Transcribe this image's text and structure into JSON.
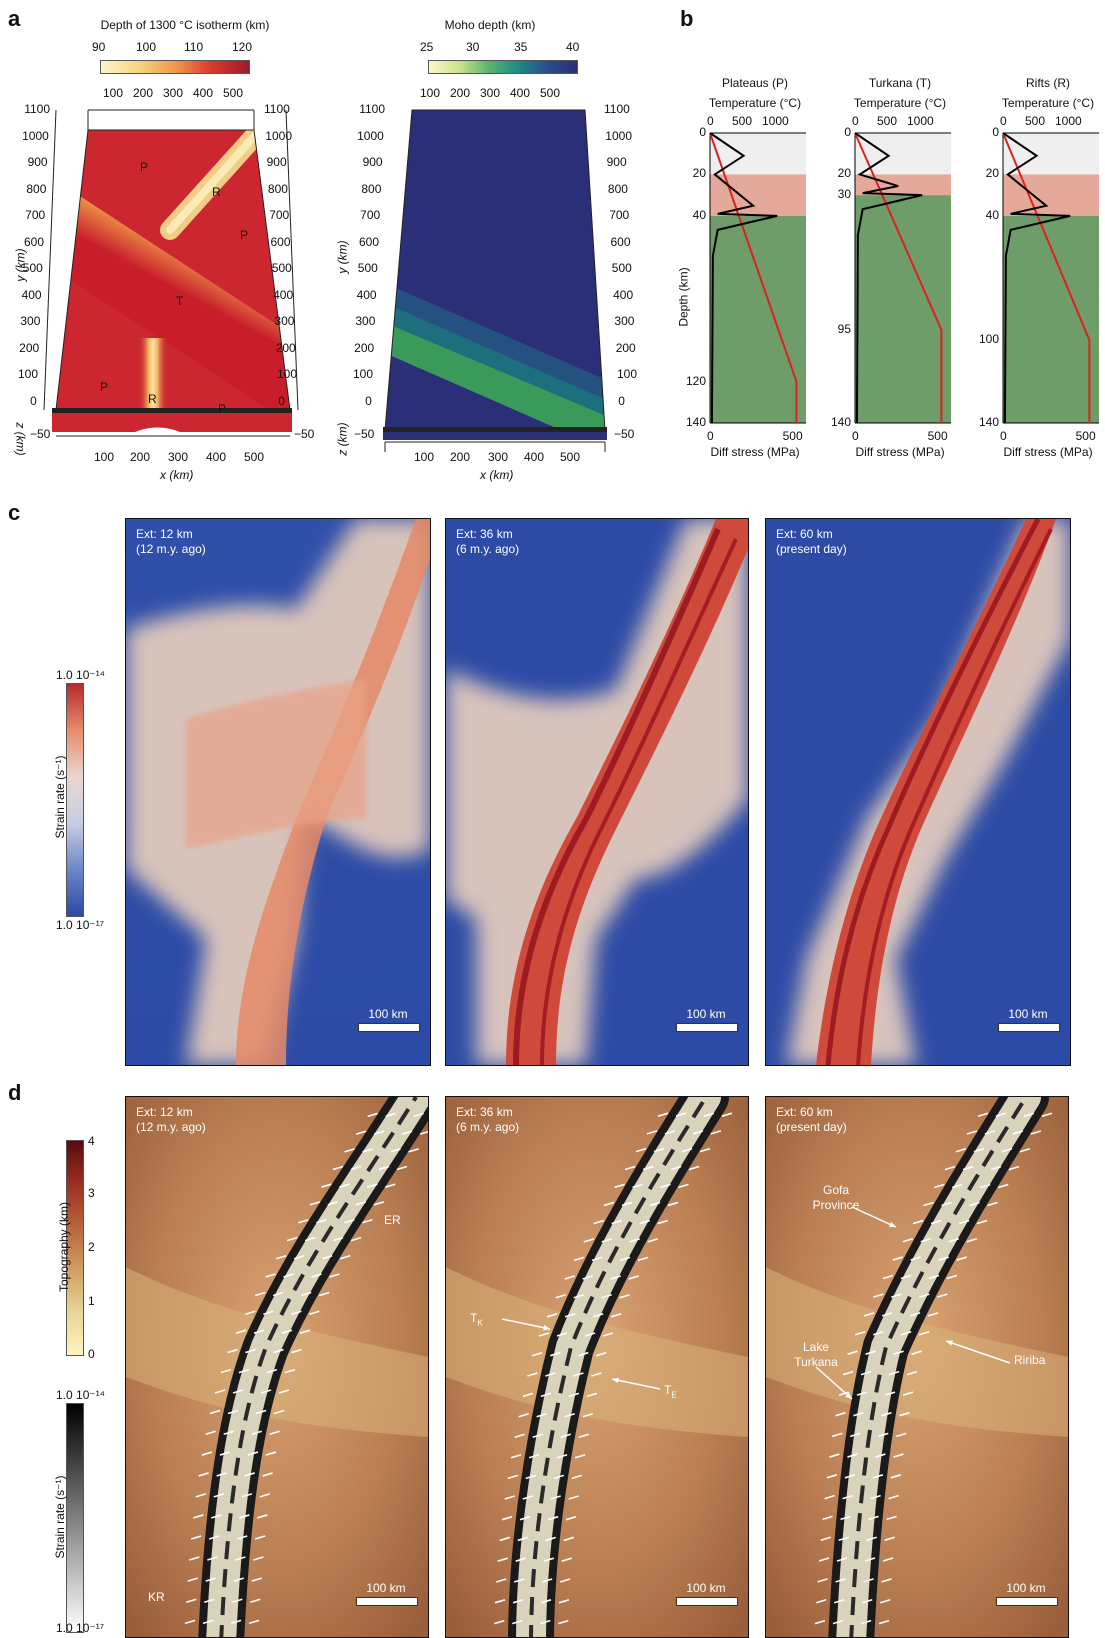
{
  "panel_labels": {
    "a": "a",
    "b": "b",
    "c": "c",
    "d": "d"
  },
  "panel_a": {
    "left": {
      "colorbar_title": "Depth of 1300 °C isotherm (km)",
      "colorbar_ticks": [
        "90",
        "100",
        "110",
        "120"
      ],
      "top_ticks": [
        "100",
        "200",
        "300",
        "400",
        "500"
      ],
      "y_ticks": [
        "1100",
        "1000",
        "900",
        "800",
        "700",
        "600",
        "500",
        "400",
        "300",
        "200",
        "100",
        "0"
      ],
      "z_tick": "−50",
      "x_ticks": [
        "100",
        "200",
        "300",
        "400",
        "500"
      ],
      "xlabel": "x (km)",
      "ylabel": "y (km)",
      "zlabel": "z (km)",
      "region_labels": [
        "P",
        "R",
        "P",
        "T",
        "P",
        "R",
        "P"
      ]
    },
    "right": {
      "colorbar_title": "Moho depth (km)",
      "colorbar_ticks": [
        "25",
        "30",
        "35",
        "40"
      ],
      "top_ticks": [
        "100",
        "200",
        "300",
        "400",
        "500"
      ],
      "y_ticks": [
        "1100",
        "1000",
        "900",
        "800",
        "700",
        "600",
        "500",
        "400",
        "300",
        "200",
        "100",
        "0"
      ],
      "z_tick": "−50",
      "x_ticks": [
        "100",
        "200",
        "300",
        "400",
        "500"
      ],
      "xlabel": "x (km)",
      "ylabel": "y (km)",
      "zlabel": "z (km)"
    },
    "colors": {
      "hot": "#c81e2c",
      "cool": "#f3dc95",
      "moho_deep": "#2b2f78",
      "moho_mid": "#1d6f7e",
      "moho_shallow": "#3a9a5a"
    }
  },
  "panel_b": {
    "ylabel": "Depth (km)",
    "xlabel": "Diff stress (MPa)",
    "top_axis_label": "Temperature (°C)",
    "top_ticks": [
      "0",
      "500",
      "1000"
    ],
    "bottom_ticks": [
      "0",
      "500"
    ],
    "profiles": [
      {
        "title": "Plateaus (P)",
        "depth_ticks": [
          "0",
          "20",
          "40",
          "120",
          "140"
        ],
        "crust_bands": [
          20,
          40
        ],
        "lith_base": 120
      },
      {
        "title": "Turkana (T)",
        "depth_ticks": [
          "0",
          "20",
          "30",
          "95",
          "140"
        ],
        "crust_bands": [
          20,
          30
        ],
        "lith_base": 95
      },
      {
        "title": "Rifts (R)",
        "depth_ticks": [
          "0",
          "20",
          "40",
          "100",
          "140"
        ],
        "crust_bands": [
          20,
          40
        ],
        "lith_base": 100
      }
    ],
    "colors": {
      "upper": "#efefef",
      "lower": "#e4a99a",
      "mantle": "#6e9d69",
      "temp": "#e0201f",
      "stress": "#000000"
    }
  },
  "panel_c": {
    "colorbar_label": "Strain rate (s⁻¹)",
    "colorbar_top": "1.0 10⁻¹⁴",
    "colorbar_bottom": "1.0 10⁻¹⁷",
    "scale": "100 km",
    "frames": [
      {
        "line1": "Ext: 12 km",
        "line2": "(12 m.y. ago)"
      },
      {
        "line1": "Ext: 36 km",
        "line2": "(6 m.y. ago)"
      },
      {
        "line1": "Ext: 60 km",
        "line2": "(present day)"
      }
    ]
  },
  "panel_d": {
    "topo_label": "Topography (km)",
    "topo_ticks": [
      "4",
      "3",
      "2",
      "1",
      "0"
    ],
    "strain_label": "Strain rate (s⁻¹)",
    "strain_top": "1.0 10⁻¹⁴",
    "strain_bottom": "1.0 10⁻¹⁷",
    "scale": "100 km",
    "frames": [
      {
        "line1": "Ext: 12 km",
        "line2": "(12 m.y. ago)"
      },
      {
        "line1": "Ext: 36 km",
        "line2": "(6 m.y. ago)"
      },
      {
        "line1": "Ext: 60 km",
        "line2": "(present day)"
      }
    ],
    "annotations": {
      "er": "ER",
      "kr": "KR",
      "tk": "T",
      "tk_sub": "K",
      "te": "T",
      "te_sub": "E",
      "gofa1": "Gofa",
      "gofa2": "Province",
      "lake1": "Lake",
      "lake2": "Turkana",
      "ririba": "Ririba"
    }
  }
}
